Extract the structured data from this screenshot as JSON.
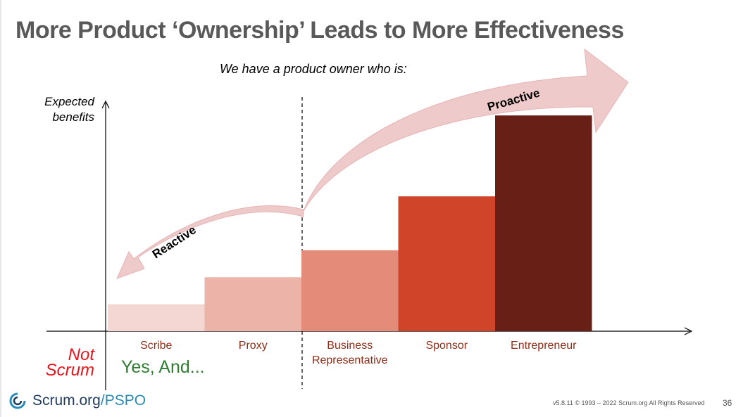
{
  "slide": {
    "title": "More Product ‘Ownership’ Leads to More Effectiveness",
    "subtitle": "We have a product owner who is:",
    "not_scrum": "Not Scrum",
    "yes_and": "Yes, And...",
    "logo_main": "Scrum.org",
    "logo_accent": "/PSPO",
    "copyright": "v5.8.11 © 1993 – 2022 Scrum.org All Rights Reserved",
    "page_number": "36"
  },
  "chart_data": {
    "type": "bar",
    "ylabel": "Expected benefits",
    "categories": [
      "Scribe",
      "Proxy",
      "Business Representative",
      "Sponsor",
      "Entrepreneur"
    ],
    "values": [
      1,
      2,
      3,
      5,
      8
    ],
    "ylim": [
      0,
      8.5
    ],
    "colors": [
      "#f4d6d2",
      "#ecb3a9",
      "#e48c79",
      "#d04429",
      "#681f16"
    ],
    "label_color": "#8f2d18",
    "arrows": {
      "reactive": "Reactive",
      "proactive": "Proactive",
      "color": "#efcaca"
    }
  }
}
